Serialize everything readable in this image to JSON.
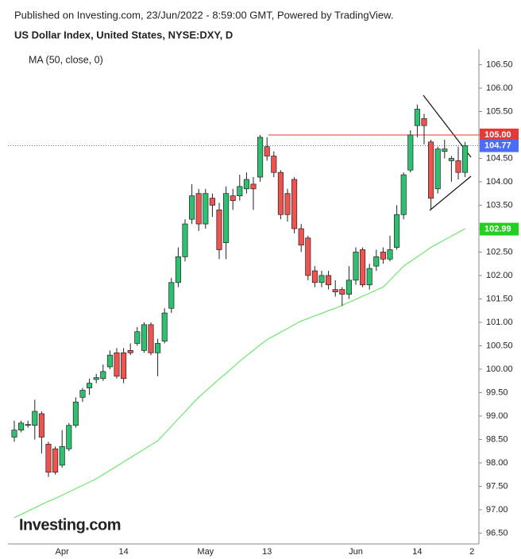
{
  "chart_data": {
    "type": "candlestick",
    "header": "Published on Investing.com, 23/Jun/2022 - 8:59:00 GMT, Powered by TradingView.",
    "title": "US Dollar Index, United States, NYSE:DXY, D",
    "logo": "Investing.com",
    "categories": [
      null,
      null,
      null,
      null,
      null,
      null,
      null,
      "Apr",
      null,
      null,
      null,
      null,
      null,
      null,
      null,
      null,
      "14",
      null,
      null,
      null,
      null,
      null,
      null,
      null,
      null,
      null,
      null,
      null,
      "May",
      null,
      null,
      null,
      null,
      null,
      null,
      null,
      null,
      "13",
      null,
      null,
      null,
      null,
      null,
      null,
      null,
      null,
      null,
      null,
      null,
      null,
      "Jun",
      null,
      null,
      null,
      null,
      null,
      null,
      null,
      null,
      "14",
      null,
      null,
      null,
      null,
      null,
      null,
      null,
      "2"
    ],
    "open": [
      98.55,
      98.7,
      98.8,
      98.8,
      99.05,
      98.4,
      98.3,
      97.95,
      98.3,
      98.8,
      99.4,
      99.6,
      99.78,
      99.8,
      100.05,
      100.35,
      100.35,
      100.4,
      100.55,
      100.4,
      100.95,
      100.35,
      100.6,
      101.3,
      101.85,
      102.4,
      103.2,
      103.75,
      103.1,
      103.65,
      103.4,
      102.7,
      103.7,
      103.7,
      103.85,
      103.95,
      104.1,
      104.75,
      104.55,
      104.2,
      103.75,
      104.05,
      103.0,
      102.8,
      102.1,
      101.85,
      102.0,
      101.7,
      101.7,
      101.6,
      101.9,
      102.55,
      101.8,
      102.2,
      102.5,
      102.35,
      102.6,
      103.3,
      104.25,
      105.2,
      105.35,
      104.85,
      103.85,
      104.65,
      104.45,
      104.45,
      104.2,
      null
    ],
    "high": [
      98.9,
      98.9,
      98.9,
      99.35,
      99.1,
      98.45,
      98.35,
      98.7,
      98.85,
      99.4,
      99.6,
      99.8,
      99.9,
      100.1,
      100.4,
      100.45,
      100.45,
      100.55,
      100.9,
      101.0,
      101.0,
      100.65,
      101.3,
      101.95,
      102.6,
      103.2,
      103.95,
      103.85,
      103.85,
      103.75,
      103.55,
      103.9,
      103.85,
      104.15,
      104.2,
      104.1,
      105.0,
      104.95,
      104.65,
      104.25,
      103.85,
      104.1,
      103.1,
      102.85,
      102.2,
      102.1,
      102.1,
      101.9,
      101.75,
      102.2,
      102.6,
      102.6,
      102.25,
      102.55,
      102.6,
      102.85,
      103.5,
      104.2,
      105.1,
      105.65,
      105.45,
      104.9,
      104.75,
      104.9,
      104.55,
      104.75,
      104.85,
      null
    ],
    "low": [
      98.45,
      98.65,
      98.75,
      98.5,
      98.2,
      97.7,
      97.75,
      97.9,
      98.25,
      98.75,
      99.3,
      99.45,
      99.7,
      99.75,
      100.0,
      99.8,
      99.7,
      100.3,
      100.5,
      100.35,
      100.3,
      99.85,
      100.55,
      101.2,
      101.75,
      102.3,
      103.1,
      102.95,
      103.0,
      103.25,
      102.35,
      102.35,
      103.4,
      103.6,
      103.75,
      103.4,
      104.0,
      104.45,
      104.1,
      103.2,
      103.15,
      102.9,
      102.5,
      101.9,
      101.75,
      101.75,
      101.7,
      101.55,
      101.35,
      101.5,
      101.8,
      101.75,
      101.7,
      102.1,
      102.25,
      102.3,
      102.55,
      103.2,
      104.2,
      104.95,
      104.8,
      103.4,
      103.75,
      104.5,
      104.0,
      104.05,
      104.1,
      null
    ],
    "close": [
      98.7,
      98.85,
      98.82,
      99.1,
      98.55,
      97.8,
      97.8,
      98.35,
      98.8,
      99.3,
      99.55,
      99.7,
      99.82,
      99.95,
      100.3,
      99.85,
      99.8,
      100.35,
      100.8,
      100.95,
      100.35,
      100.55,
      101.2,
      101.85,
      102.4,
      103.1,
      103.7,
      103.1,
      103.75,
      103.5,
      102.55,
      103.75,
      103.6,
      103.9,
      104.05,
      103.85,
      104.95,
      104.55,
      104.2,
      103.3,
      103.3,
      103.0,
      102.65,
      102.0,
      101.85,
      102.0,
      101.8,
      101.65,
      101.6,
      101.9,
      102.5,
      101.8,
      102.15,
      102.4,
      102.35,
      102.55,
      103.3,
      104.15,
      105.0,
      105.55,
      105.2,
      103.65,
      104.7,
      104.7,
      104.5,
      104.2,
      104.77,
      null
    ],
    "up_color": "#2fbf71",
    "down_color": "#ef5350",
    "ma": {
      "name": "MA (50, close, 0)",
      "color": "#6ee86e",
      "values": [
        96.83,
        96.9,
        96.97,
        97.04,
        97.11,
        97.18,
        97.24,
        97.31,
        97.38,
        97.45,
        97.52,
        97.59,
        97.66,
        97.75,
        97.84,
        97.93,
        98.02,
        98.11,
        98.2,
        98.29,
        98.38,
        98.47,
        98.63,
        98.78,
        98.94,
        99.09,
        99.25,
        99.4,
        99.53,
        99.66,
        99.79,
        99.91,
        100.04,
        100.17,
        100.29,
        100.4,
        100.52,
        100.63,
        100.71,
        100.79,
        100.87,
        100.95,
        101.03,
        101.08,
        101.14,
        101.19,
        101.25,
        101.3,
        101.36,
        101.43,
        101.49,
        101.56,
        101.62,
        101.69,
        101.75,
        101.9,
        102.05,
        102.2,
        102.3,
        102.4,
        102.5,
        102.6,
        102.68,
        102.76,
        102.84,
        102.92,
        103.0,
        null
      ]
    },
    "price_labels": [
      {
        "value": 105,
        "label": "105.00",
        "color": "#e53935"
      },
      {
        "value": 104.77,
        "label": "104.77",
        "color": "#4a6cf7"
      },
      {
        "value": 102.99,
        "label": "102.99",
        "color": "#22d022"
      }
    ],
    "ylim": [
      96.27,
      106.83
    ],
    "yticks": [
      {
        "value": 96.5,
        "label": "96.50"
      },
      {
        "value": 97,
        "label": "97.00"
      },
      {
        "value": 97.5,
        "label": "97.50"
      },
      {
        "value": 98,
        "label": "98.00"
      },
      {
        "value": 98.5,
        "label": "98.50"
      },
      {
        "value": 99,
        "label": "99.00"
      },
      {
        "value": 99.5,
        "label": "99.50"
      },
      {
        "value": 100,
        "label": "100.00"
      },
      {
        "value": 100.5,
        "label": "100.50"
      },
      {
        "value": 101,
        "label": "101.00"
      },
      {
        "value": 101.5,
        "label": "101.50"
      },
      {
        "value": 102,
        "label": "102.00"
      },
      {
        "value": 102.5,
        "label": "102.50"
      },
      {
        "value": 103,
        "label": "103.00"
      },
      {
        "value": 103.5,
        "label": "103.50"
      },
      {
        "value": 104,
        "label": "104.00"
      },
      {
        "value": 104.5,
        "label": "104.50"
      },
      {
        "value": 105,
        "label": "105.00"
      },
      {
        "value": 105.5,
        "label": "105.50"
      },
      {
        "value": 106,
        "label": "106.00"
      },
      {
        "value": 106.5,
        "label": "106.50"
      }
    ]
  }
}
